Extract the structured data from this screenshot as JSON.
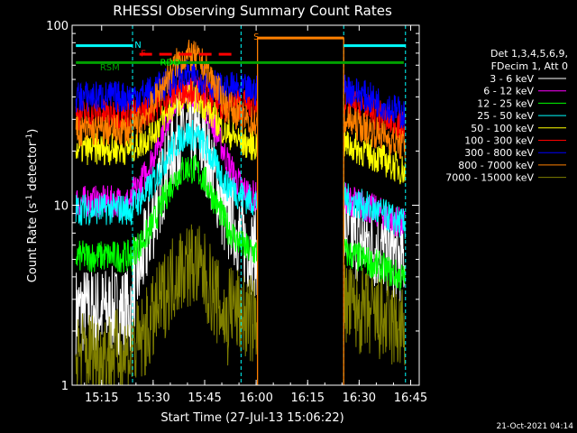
{
  "chart_data": {
    "type": "line",
    "title": "RHESSI Observing Summary Count Rates",
    "xlabel": "Start Time (27-Jul-13 15:06:22)",
    "ylabel_main": "Count Rate (s",
    "ylabel_sup1": "-1",
    "ylabel_mid": " detector",
    "ylabel_sup2": "-1",
    "ylabel_end": ")",
    "yscale": "log",
    "ylim": [
      1,
      100
    ],
    "xlim_minutes": [
      906.4,
      1007.5
    ],
    "x_ticks": [
      {
        "label": "15:15",
        "min": 915
      },
      {
        "label": "15:30",
        "min": 930
      },
      {
        "label": "15:45",
        "min": 945
      },
      {
        "label": "16:00",
        "min": 960
      },
      {
        "label": "16:15",
        "min": 975
      },
      {
        "label": "16:30",
        "min": 990
      },
      {
        "label": "16:45",
        "min": 1005
      }
    ],
    "y_ticks": [
      {
        "label": "1",
        "v": 1
      },
      {
        "label": "10",
        "v": 10
      },
      {
        "label": "100",
        "v": 100
      }
    ],
    "legend_header": [
      "Det 1,3,4,5,6,9,",
      "FDecim 1, Att 0"
    ],
    "series": [
      {
        "name": "3 - 6 keV",
        "color": "#ffffff",
        "base": 2.6,
        "peak": 17,
        "post": 7
      },
      {
        "name": "6 - 12 keV",
        "color": "#ff00ff",
        "base": 10.5,
        "peak": 31,
        "post": 11
      },
      {
        "name": "12 - 25 keV",
        "color": "#00ff00",
        "base": 5.2,
        "peak": 12,
        "post": 5.5
      },
      {
        "name": "25 - 50 keV",
        "color": "#00ffff",
        "base": 9.5,
        "peak": 19,
        "post": 11
      },
      {
        "name": "50 - 100 keV",
        "color": "#ffff00",
        "base": 20.5,
        "peak": 33,
        "post": 22
      },
      {
        "name": "100 - 300 keV",
        "color": "#ff0000",
        "base": 32,
        "peak": 40,
        "post": 38
      },
      {
        "name": "300 - 800 keV",
        "color": "#0000ff",
        "base": 40,
        "peak": 48,
        "post": 45
      },
      {
        "name": "800 - 7000 keV",
        "color": "#ff8000",
        "base": 26,
        "peak": 52,
        "post": 30
      },
      {
        "name": "7000 - 15000 keV",
        "color": "#808000",
        "base": 1.5,
        "peak": 3.5,
        "post": 2.8
      }
    ],
    "annotations": [
      {
        "label": "N",
        "color": "#00ffff"
      },
      {
        "label": "F",
        "color": "#ff0000"
      },
      {
        "label": "S",
        "color": "#ff8000"
      },
      {
        "label": "RDO",
        "color": "#00ff00"
      },
      {
        "label": "RSM",
        "color": "#00a000"
      }
    ],
    "eclipse_boundaries_minutes": [
      924,
      955.6,
      985.5,
      1003.5
    ],
    "saa_interval_minutes": [
      960.4,
      985.5
    ]
  },
  "footer": "21-Oct-2021 04:14"
}
